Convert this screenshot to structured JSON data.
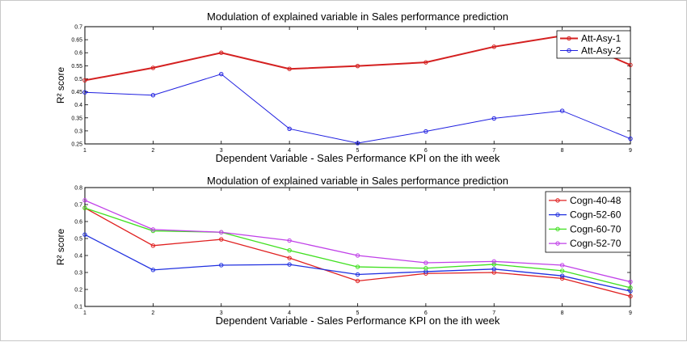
{
  "chart_data": [
    {
      "type": "line",
      "title": "Modulation of explained variable in Sales performance prediction",
      "xlabel": "Dependent Variable - Sales Performance KPI on the ith week",
      "ylabel": "R² score",
      "x": [
        1,
        2,
        3,
        4,
        5,
        6,
        7,
        8,
        9
      ],
      "xlim": [
        1,
        9
      ],
      "ylim": [
        0.25,
        0.7
      ],
      "yticks": [
        "0.25",
        "0.3",
        "0.35",
        "0.4",
        "0.45",
        "0.5",
        "0.55",
        "0.6",
        "0.65",
        "0.7"
      ],
      "xticks": [
        "1",
        "2",
        "3",
        "4",
        "5",
        "6",
        "7",
        "8",
        "9"
      ],
      "grid": false,
      "legend_position": "top-right",
      "series": [
        {
          "name": "Att-Asy-1",
          "color": "#d42020",
          "width": 2,
          "values": [
            0.494,
            0.542,
            0.6,
            0.538,
            0.549,
            0.563,
            0.623,
            0.665,
            0.553
          ]
        },
        {
          "name": "Att-Asy-2",
          "color": "#2020e0",
          "width": 1,
          "values": [
            0.448,
            0.437,
            0.518,
            0.308,
            0.253,
            0.298,
            0.348,
            0.377,
            0.27
          ]
        }
      ]
    },
    {
      "type": "line",
      "title": "Modulation of explained variable in Sales performance prediction",
      "xlabel": "Dependent Variable - Sales Performance KPI on the ith week",
      "ylabel": "R² score",
      "x": [
        1,
        2,
        3,
        4,
        5,
        6,
        7,
        8,
        9
      ],
      "xlim": [
        1,
        9
      ],
      "ylim": [
        0.1,
        0.8
      ],
      "yticks": [
        "0.1",
        "0.2",
        "0.3",
        "0.4",
        "0.5",
        "0.6",
        "0.7",
        "0.8"
      ],
      "xticks": [
        "1",
        "2",
        "3",
        "4",
        "5",
        "6",
        "7",
        "8",
        "9"
      ],
      "grid": false,
      "legend_position": "top-right",
      "series": [
        {
          "name": "Cogn-40-48",
          "color": "#e02020",
          "width": 1.3,
          "values": [
            0.68,
            0.458,
            0.495,
            0.385,
            0.25,
            0.294,
            0.3,
            0.265,
            0.16
          ]
        },
        {
          "name": "Cogn-52-60",
          "color": "#2030e0",
          "width": 1.3,
          "values": [
            0.523,
            0.315,
            0.343,
            0.347,
            0.288,
            0.305,
            0.32,
            0.28,
            0.19
          ]
        },
        {
          "name": "Cogn-60-70",
          "color": "#40e020",
          "width": 1.3,
          "values": [
            0.68,
            0.545,
            0.537,
            0.43,
            0.333,
            0.325,
            0.348,
            0.31,
            0.21
          ]
        },
        {
          "name": "Cogn-52-70",
          "color": "#c040e8",
          "width": 1.3,
          "values": [
            0.725,
            0.553,
            0.537,
            0.488,
            0.4,
            0.357,
            0.365,
            0.343,
            0.245
          ]
        }
      ]
    }
  ]
}
